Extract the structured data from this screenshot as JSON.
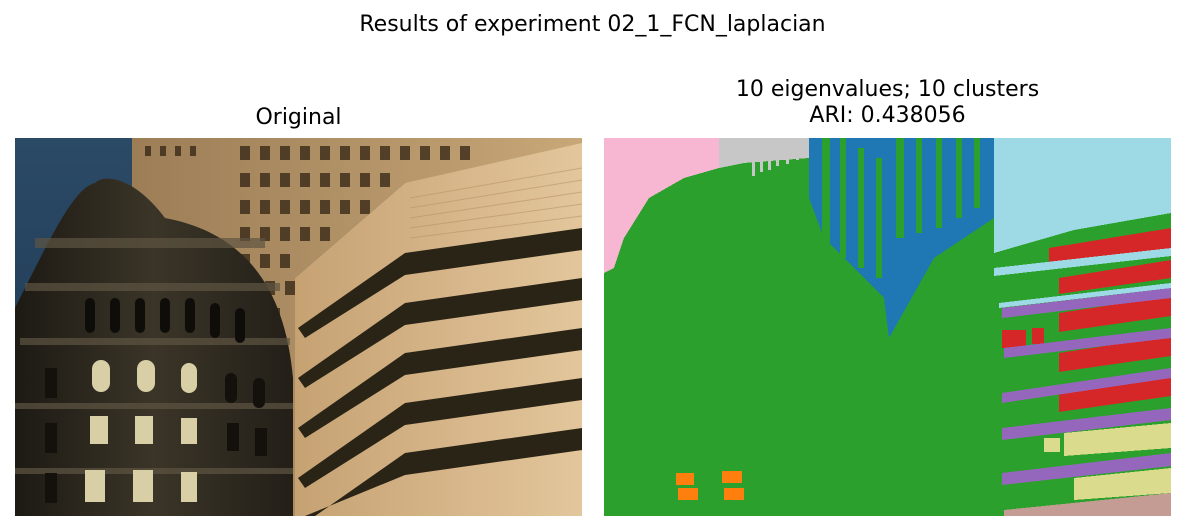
{
  "figure": {
    "suptitle": "Results of experiment 02_1_FCN_laplacian",
    "left_panel": {
      "title": "Original",
      "image_description": "photo of buildings"
    },
    "right_panel": {
      "title_line1": "10 eigenvalues; 10 clusters",
      "title_line2": "ARI: 0.438056"
    }
  },
  "segmentation": {
    "n_eigenvalues": 10,
    "n_clusters": 10,
    "ari": 0.438056,
    "cluster_colors": [
      "#2ca02c",
      "#1f77b4",
      "#9edae5",
      "#f7b6d2",
      "#c7c7c7",
      "#d62728",
      "#9467bd",
      "#dbdb8d",
      "#ff7f0e",
      "#c49c94"
    ]
  }
}
